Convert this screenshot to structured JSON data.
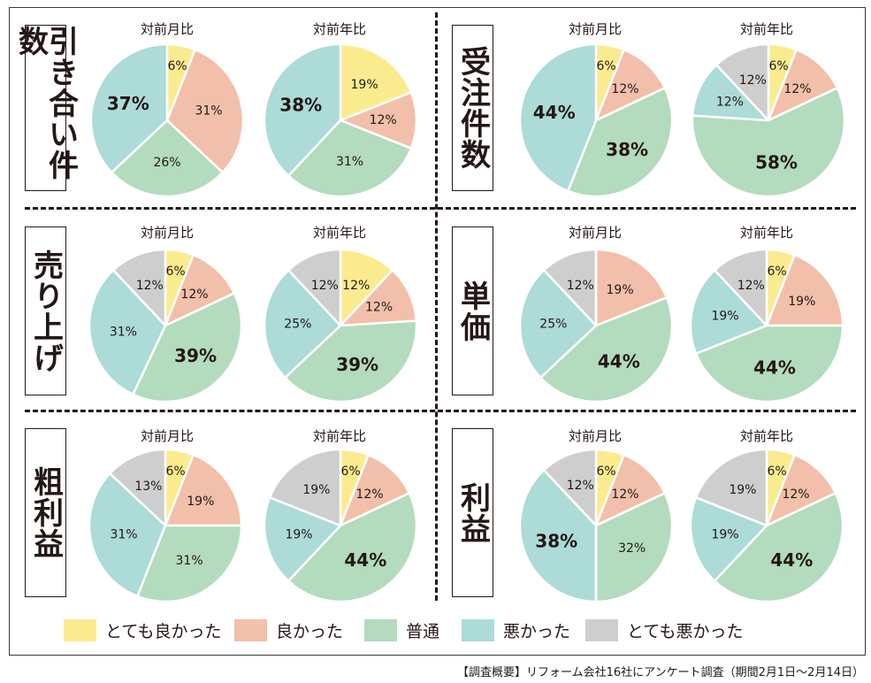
{
  "colors": {
    "very_good": "#fbeb8f",
    "good": "#f2c0aa",
    "normal": "#b3dbbd",
    "bad": "#acdbd8",
    "very_bad": "#cecece"
  },
  "legend": [
    {
      "key": "very_good",
      "label": "とても良かった"
    },
    {
      "key": "good",
      "label": "良かった"
    },
    {
      "key": "normal",
      "label": "普通"
    },
    {
      "key": "bad",
      "label": "悪かった"
    },
    {
      "key": "very_bad",
      "label": "とても悪かった"
    }
  ],
  "panels": [
    {
      "label": "引き合い件数"
    },
    {
      "label": "受注件数"
    },
    {
      "label": "売り上げ"
    },
    {
      "label": "単価"
    },
    {
      "label": "粗利益"
    },
    {
      "label": "利益"
    }
  ],
  "chart_data": [
    {
      "type": "pie",
      "title": "対前月比",
      "panel": "引き合い件数",
      "categories": [
        "とても良かった",
        "良かった",
        "普通",
        "悪かった",
        "とても悪かった"
      ],
      "values": [
        6,
        31,
        26,
        37,
        0
      ],
      "labels": [
        "6%",
        "31%",
        "26%",
        "37%",
        ""
      ]
    },
    {
      "type": "pie",
      "title": "対前年比",
      "panel": "引き合い件数",
      "categories": [
        "とても良かった",
        "良かった",
        "普通",
        "悪かった",
        "とても悪かった"
      ],
      "values": [
        19,
        12,
        31,
        38,
        0
      ],
      "labels": [
        "19%",
        "12%",
        "31%",
        "38%",
        ""
      ]
    },
    {
      "type": "pie",
      "title": "対前月比",
      "panel": "受注件数",
      "categories": [
        "とても良かった",
        "良かった",
        "普通",
        "悪かった",
        "とても悪かった"
      ],
      "values": [
        6,
        12,
        38,
        44,
        0
      ],
      "labels": [
        "6%",
        "12%",
        "38%",
        "44%",
        ""
      ]
    },
    {
      "type": "pie",
      "title": "対前年比",
      "panel": "受注件数",
      "categories": [
        "とても良かった",
        "良かった",
        "普通",
        "悪かった",
        "とても悪かった"
      ],
      "values": [
        6,
        12,
        58,
        12,
        12
      ],
      "labels": [
        "6%",
        "12%",
        "58%",
        "12%",
        "12%"
      ]
    },
    {
      "type": "pie",
      "title": "対前月比",
      "panel": "売り上げ",
      "categories": [
        "とても良かった",
        "良かった",
        "普通",
        "悪かった",
        "とても悪かった"
      ],
      "values": [
        6,
        12,
        39,
        31,
        12
      ],
      "labels": [
        "6%",
        "12%",
        "39%",
        "31%",
        "12%"
      ]
    },
    {
      "type": "pie",
      "title": "対前年比",
      "panel": "売り上げ",
      "categories": [
        "とても良かった",
        "良かった",
        "普通",
        "悪かった",
        "とても悪かった"
      ],
      "values": [
        12,
        12,
        39,
        25,
        12
      ],
      "labels": [
        "12%",
        "12%",
        "39%",
        "25%",
        "12%"
      ]
    },
    {
      "type": "pie",
      "title": "対前月比",
      "panel": "単価",
      "categories": [
        "とても良かった",
        "良かった",
        "普通",
        "悪かった",
        "とても悪かった"
      ],
      "values": [
        0,
        19,
        44,
        25,
        12
      ],
      "labels": [
        "",
        "19%",
        "44%",
        "25%",
        "12%"
      ]
    },
    {
      "type": "pie",
      "title": "対前年比",
      "panel": "単価",
      "categories": [
        "とても良かった",
        "良かった",
        "普通",
        "悪かった",
        "とても悪かった"
      ],
      "values": [
        6,
        19,
        44,
        19,
        12
      ],
      "labels": [
        "6%",
        "19%",
        "44%",
        "19%",
        "12%"
      ]
    },
    {
      "type": "pie",
      "title": "対前月比",
      "panel": "粗利益",
      "categories": [
        "とても良かった",
        "良かった",
        "普通",
        "悪かった",
        "とても悪かった"
      ],
      "values": [
        6,
        19,
        31,
        31,
        13
      ],
      "labels": [
        "6%",
        "19%",
        "31%",
        "31%",
        "13%"
      ]
    },
    {
      "type": "pie",
      "title": "対前年比",
      "panel": "粗利益",
      "categories": [
        "とても良かった",
        "良かった",
        "普通",
        "悪かった",
        "とても悪かった"
      ],
      "values": [
        6,
        12,
        44,
        19,
        19
      ],
      "labels": [
        "6%",
        "12%",
        "44%",
        "19%",
        "19%"
      ]
    },
    {
      "type": "pie",
      "title": "対前月比",
      "panel": "利益",
      "categories": [
        "とても良かった",
        "良かった",
        "普通",
        "悪かった",
        "とても悪かった"
      ],
      "values": [
        6,
        12,
        32,
        38,
        12
      ],
      "labels": [
        "6%",
        "12%",
        "32%",
        "38%",
        "12%"
      ]
    },
    {
      "type": "pie",
      "title": "対前年比",
      "panel": "利益",
      "categories": [
        "とても良かった",
        "良かった",
        "普通",
        "悪かった",
        "とても悪かった"
      ],
      "values": [
        6,
        12,
        44,
        19,
        19
      ],
      "labels": [
        "6%",
        "12%",
        "44%",
        "19%",
        "19%"
      ]
    }
  ],
  "footnote": "【調査概要】リフォーム会社16社にアンケート調査（期間2月1日〜2月14日）"
}
